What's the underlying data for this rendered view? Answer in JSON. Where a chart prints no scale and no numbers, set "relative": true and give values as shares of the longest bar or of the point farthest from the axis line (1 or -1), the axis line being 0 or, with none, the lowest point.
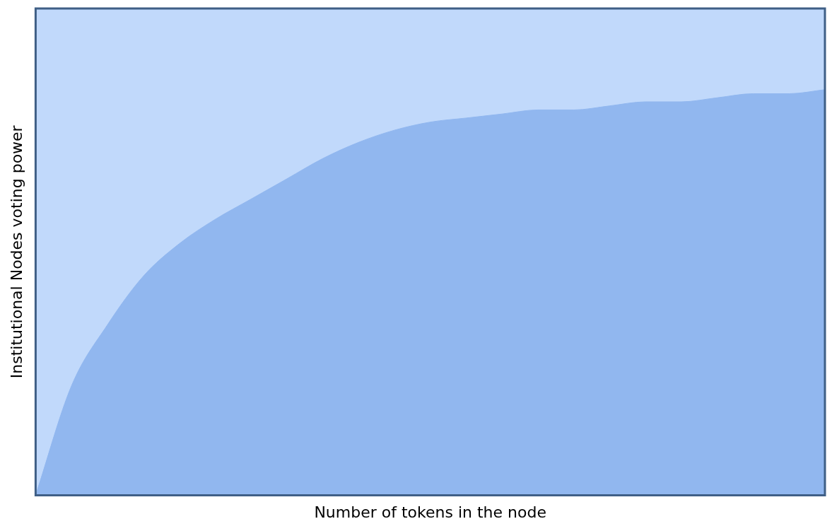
{
  "chart_data": {
    "type": "area",
    "xlabel": "Number of tokens in the node",
    "ylabel": "Institutional Nodes voting power",
    "relative": true,
    "grid": false,
    "legend": false,
    "categories": [
      null,
      null,
      null,
      null,
      null,
      null,
      null,
      null,
      null,
      null,
      null,
      null,
      null,
      null,
      null,
      null,
      null,
      null,
      null,
      null,
      null,
      null,
      null
    ],
    "series": [
      {
        "color": "#91b7ef",
        "values": [
          0,
          0.27,
          0.42,
          0.54,
          0.62,
          0.68,
          0.73,
          0.78,
          0.83,
          0.87,
          0.9,
          0.92,
          0.93,
          0.94,
          0.95,
          0.95,
          0.96,
          0.97,
          0.97,
          0.98,
          0.99,
          0.99,
          1
        ]
      }
    ]
  }
}
